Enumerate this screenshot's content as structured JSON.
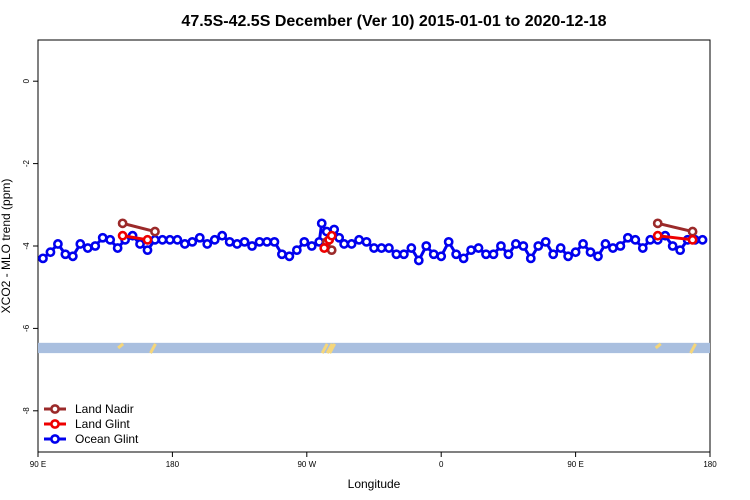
{
  "chart_data": {
    "type": "line",
    "title": "47.5S-42.5S December (Ver 10)   2015-01-01 to 2020-12-18",
    "xlabel": "Longitude",
    "ylabel": "XCO2 - MLO trend (ppm)",
    "xlim": [
      -90,
      180
    ],
    "ylim": [
      -9,
      1
    ],
    "x_ticks": [
      {
        "value": -90,
        "label": "90 E"
      },
      {
        "value": -36,
        "label": "180"
      },
      {
        "value": 18,
        "label": "90 W"
      },
      {
        "value": 72,
        "label": "0"
      },
      {
        "value": 126,
        "label": "90 E"
      },
      {
        "value": 180,
        "label": "180"
      }
    ],
    "y_ticks": [
      0,
      -2,
      -4,
      -6,
      -8
    ],
    "legend_position": "bottom-left",
    "colors": {
      "land_nadir": "#9b2a2a",
      "land_glint": "#ee0000",
      "ocean_glint": "#0000ee",
      "coverage_band": "#a9bfdf",
      "coverage_marks": "#f5d67a"
    },
    "series": [
      {
        "name": "Land Nadir",
        "color": "#9b2a2a",
        "points": [
          {
            "x": -56,
            "y": -3.45
          },
          {
            "x": -43,
            "y": -3.65
          },
          {
            "x": 26,
            "y": -3.9
          },
          {
            "x": 28,
            "y": -4.1
          },
          {
            "x": 159,
            "y": -3.45
          },
          {
            "x": 173,
            "y": -3.65
          }
        ]
      },
      {
        "name": "Land Glint",
        "color": "#ee0000",
        "points": [
          {
            "x": -56,
            "y": -3.75
          },
          {
            "x": -46,
            "y": -3.85
          },
          {
            "x": 25,
            "y": -4.05
          },
          {
            "x": 27,
            "y": -3.85
          },
          {
            "x": 28,
            "y": -3.75
          },
          {
            "x": 159,
            "y": -3.75
          },
          {
            "x": 173,
            "y": -3.85
          }
        ]
      },
      {
        "name": "Ocean Glint",
        "color": "#0000ee",
        "points": [
          {
            "x": -88,
            "y": -4.3
          },
          {
            "x": -85,
            "y": -4.15
          },
          {
            "x": -82,
            "y": -3.95
          },
          {
            "x": -79,
            "y": -4.2
          },
          {
            "x": -76,
            "y": -4.25
          },
          {
            "x": -73,
            "y": -3.95
          },
          {
            "x": -70,
            "y": -4.05
          },
          {
            "x": -67,
            "y": -4.0
          },
          {
            "x": -64,
            "y": -3.8
          },
          {
            "x": -61,
            "y": -3.85
          },
          {
            "x": -58,
            "y": -4.05
          },
          {
            "x": -55,
            "y": -3.85
          },
          {
            "x": -52,
            "y": -3.75
          },
          {
            "x": -49,
            "y": -3.95
          },
          {
            "x": -46,
            "y": -4.1
          },
          {
            "x": -43,
            "y": -3.85
          },
          {
            "x": -40,
            "y": -3.85
          },
          {
            "x": -37,
            "y": -3.85
          },
          {
            "x": -34,
            "y": -3.85
          },
          {
            "x": -31,
            "y": -3.95
          },
          {
            "x": -28,
            "y": -3.9
          },
          {
            "x": -25,
            "y": -3.8
          },
          {
            "x": -22,
            "y": -3.95
          },
          {
            "x": -19,
            "y": -3.85
          },
          {
            "x": -16,
            "y": -3.75
          },
          {
            "x": -13,
            "y": -3.9
          },
          {
            "x": -10,
            "y": -3.95
          },
          {
            "x": -7,
            "y": -3.9
          },
          {
            "x": -4,
            "y": -4.0
          },
          {
            "x": -1,
            "y": -3.9
          },
          {
            "x": 2,
            "y": -3.9
          },
          {
            "x": 5,
            "y": -3.9
          },
          {
            "x": 8,
            "y": -4.2
          },
          {
            "x": 11,
            "y": -4.25
          },
          {
            "x": 14,
            "y": -4.1
          },
          {
            "x": 17,
            "y": -3.9
          },
          {
            "x": 20,
            "y": -4.0
          },
          {
            "x": 23,
            "y": -3.9
          },
          {
            "x": 24,
            "y": -3.45
          },
          {
            "x": 26,
            "y": -3.65
          },
          {
            "x": 29,
            "y": -3.6
          },
          {
            "x": 31,
            "y": -3.8
          },
          {
            "x": 33,
            "y": -3.95
          },
          {
            "x": 36,
            "y": -3.95
          },
          {
            "x": 39,
            "y": -3.85
          },
          {
            "x": 42,
            "y": -3.9
          },
          {
            "x": 45,
            "y": -4.05
          },
          {
            "x": 48,
            "y": -4.05
          },
          {
            "x": 51,
            "y": -4.05
          },
          {
            "x": 54,
            "y": -4.2
          },
          {
            "x": 57,
            "y": -4.2
          },
          {
            "x": 60,
            "y": -4.05
          },
          {
            "x": 63,
            "y": -4.35
          },
          {
            "x": 66,
            "y": -4.0
          },
          {
            "x": 69,
            "y": -4.2
          },
          {
            "x": 72,
            "y": -4.25
          },
          {
            "x": 75,
            "y": -3.9
          },
          {
            "x": 78,
            "y": -4.2
          },
          {
            "x": 81,
            "y": -4.3
          },
          {
            "x": 84,
            "y": -4.1
          },
          {
            "x": 87,
            "y": -4.05
          },
          {
            "x": 90,
            "y": -4.2
          },
          {
            "x": 93,
            "y": -4.2
          },
          {
            "x": 96,
            "y": -4.0
          },
          {
            "x": 99,
            "y": -4.2
          },
          {
            "x": 102,
            "y": -3.95
          },
          {
            "x": 105,
            "y": -4.0
          },
          {
            "x": 108,
            "y": -4.3
          },
          {
            "x": 111,
            "y": -4.0
          },
          {
            "x": 114,
            "y": -3.9
          },
          {
            "x": 117,
            "y": -4.2
          },
          {
            "x": 120,
            "y": -4.05
          },
          {
            "x": 123,
            "y": -4.25
          },
          {
            "x": 126,
            "y": -4.15
          },
          {
            "x": 129,
            "y": -3.95
          },
          {
            "x": 132,
            "y": -4.15
          },
          {
            "x": 135,
            "y": -4.25
          },
          {
            "x": 138,
            "y": -3.95
          },
          {
            "x": 141,
            "y": -4.05
          },
          {
            "x": 144,
            "y": -4.0
          },
          {
            "x": 147,
            "y": -3.8
          },
          {
            "x": 150,
            "y": -3.85
          },
          {
            "x": 153,
            "y": -4.05
          },
          {
            "x": 156,
            "y": -3.85
          },
          {
            "x": 159,
            "y": -3.85
          },
          {
            "x": 162,
            "y": -3.75
          },
          {
            "x": 165,
            "y": -4.0
          },
          {
            "x": 168,
            "y": -4.1
          },
          {
            "x": 171,
            "y": -3.85
          },
          {
            "x": 174,
            "y": -3.85
          },
          {
            "x": 177,
            "y": -3.85
          }
        ]
      }
    ],
    "coverage_band": {
      "y_top": -6.35,
      "y_bottom": -6.6
    },
    "coverage_marks": [
      {
        "x": -57,
        "height": 0.1
      },
      {
        "x": -44,
        "height": 0.25
      },
      {
        "x": 25,
        "height": 0.3
      },
      {
        "x": 27,
        "height": 0.3
      },
      {
        "x": 28,
        "height": 0.3
      },
      {
        "x": 159,
        "height": 0.1
      },
      {
        "x": 173,
        "height": 0.25
      }
    ]
  }
}
